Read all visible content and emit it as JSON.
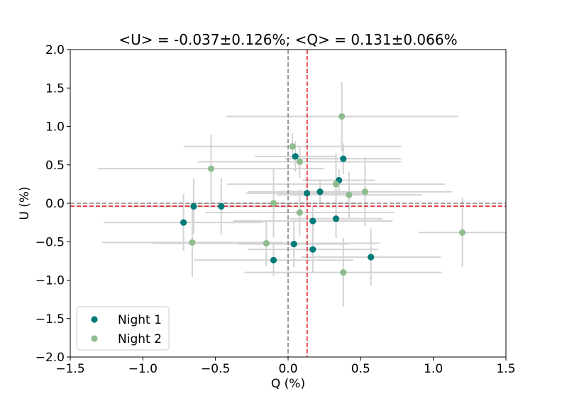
{
  "chart_data": {
    "type": "scatter",
    "title": "<U> = -0.037±0.126%; <Q> = 0.131±0.066%",
    "xlabel": "Q (%)",
    "ylabel": "U (%)",
    "xlim": [
      -1.5,
      1.5
    ],
    "ylim": [
      -2.0,
      2.0
    ],
    "xticks": [
      -1.5,
      -1.0,
      -0.5,
      0.0,
      0.5,
      1.0,
      1.5
    ],
    "xtick_labels": [
      "−1.5",
      "−1.0",
      "−0.5",
      "0.0",
      "0.5",
      "1.0",
      "1.5"
    ],
    "yticks": [
      -2.0,
      -1.5,
      -1.0,
      -0.5,
      0.0,
      0.5,
      1.0,
      1.5,
      2.0
    ],
    "ytick_labels": [
      "−2.0",
      "−1.5",
      "−1.0",
      "−0.5",
      "0.0",
      "0.5",
      "1.0",
      "1.5",
      "2.0"
    ],
    "grid": false,
    "legend_position": "lower-left",
    "reference_lines": [
      {
        "orientation": "vertical",
        "value": 0.0,
        "color": "#808080",
        "style": "dashed"
      },
      {
        "orientation": "horizontal",
        "value": 0.0,
        "color": "#808080",
        "style": "dashed"
      },
      {
        "orientation": "vertical",
        "value": 0.131,
        "color": "#e31a1c",
        "style": "dashed"
      },
      {
        "orientation": "horizontal",
        "value": -0.037,
        "color": "#e31a1c",
        "style": "dashed"
      }
    ],
    "errorbar_color": "#d3d3d3",
    "series": [
      {
        "name": "Night 1",
        "color": "#007b78",
        "points": [
          {
            "x": 0.05,
            "y": 0.61,
            "xerr": 0.28,
            "yerr": 0.2
          },
          {
            "x": 0.38,
            "y": 0.58,
            "xerr": 0.4,
            "yerr": 0.2
          },
          {
            "x": 0.35,
            "y": 0.3,
            "xerr": 0.25,
            "yerr": 0.15
          },
          {
            "x": 0.13,
            "y": 0.13,
            "xerr": 0.42,
            "yerr": 0.15
          },
          {
            "x": 0.22,
            "y": 0.15,
            "xerr": 0.5,
            "yerr": 0.15
          },
          {
            "x": -0.65,
            "y": -0.04,
            "xerr": 0.45,
            "yerr": 0.36
          },
          {
            "x": -0.46,
            "y": -0.04,
            "xerr": 0.5,
            "yerr": 0.37
          },
          {
            "x": -0.72,
            "y": -0.25,
            "xerr": 0.55,
            "yerr": 0.37
          },
          {
            "x": 0.17,
            "y": -0.23,
            "xerr": 0.55,
            "yerr": 0.2
          },
          {
            "x": 0.33,
            "y": -0.2,
            "xerr": 0.32,
            "yerr": 0.25
          },
          {
            "x": 0.04,
            "y": -0.53,
            "xerr": 0.38,
            "yerr": 0.3
          },
          {
            "x": 0.17,
            "y": -0.6,
            "xerr": 0.45,
            "yerr": 0.3
          },
          {
            "x": 0.57,
            "y": -0.7,
            "xerr": 0.48,
            "yerr": 0.37
          },
          {
            "x": -0.1,
            "y": -0.74,
            "xerr": 0.55,
            "yerr": 0.2
          }
        ]
      },
      {
        "name": "Night 2",
        "color": "#8fbc8f",
        "points": [
          {
            "x": 0.37,
            "y": 1.13,
            "xerr": 0.8,
            "yerr": 0.45
          },
          {
            "x": 0.03,
            "y": 0.74,
            "xerr": 0.75,
            "yerr": 0.17
          },
          {
            "x": 0.08,
            "y": 0.54,
            "xerr": 0.7,
            "yerr": 0.21
          },
          {
            "x": -0.53,
            "y": 0.45,
            "xerr": 0.78,
            "yerr": 0.44
          },
          {
            "x": 0.33,
            "y": 0.25,
            "xerr": 0.75,
            "yerr": 0.4
          },
          {
            "x": 0.53,
            "y": 0.15,
            "xerr": 0.6,
            "yerr": 0.45
          },
          {
            "x": 0.42,
            "y": 0.11,
            "xerr": 0.5,
            "yerr": 0.3
          },
          {
            "x": -0.1,
            "y": 0.0,
            "xerr": 0.58,
            "yerr": 0.45
          },
          {
            "x": 0.08,
            "y": -0.12,
            "xerr": 0.65,
            "yerr": 0.3
          },
          {
            "x": 1.2,
            "y": -0.38,
            "xerr": 0.3,
            "yerr": 0.45
          },
          {
            "x": -0.66,
            "y": -0.51,
            "xerr": 0.62,
            "yerr": 0.45
          },
          {
            "x": -0.15,
            "y": -0.52,
            "xerr": 0.78,
            "yerr": 0.3
          },
          {
            "x": 0.38,
            "y": -0.9,
            "xerr": 0.68,
            "yerr": 0.45
          }
        ]
      }
    ]
  }
}
